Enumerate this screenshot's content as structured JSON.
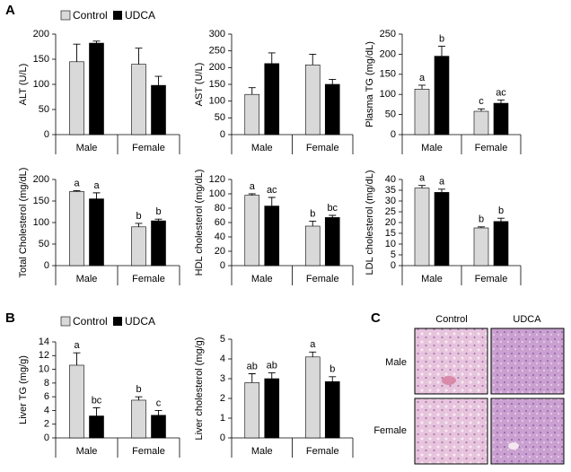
{
  "panel_labels": [
    "A",
    "B",
    "C"
  ],
  "chart_data": [
    {
      "type": "bar",
      "ylabel": "ALT (U/L)",
      "categories": [
        "Male",
        "Female"
      ],
      "series": [
        {
          "name": "Control",
          "color": "#d9d9d9",
          "values": [
            145,
            140
          ],
          "errors": [
            35,
            32
          ]
        },
        {
          "name": "UDCA",
          "color": "#000000",
          "values": [
            182,
            98
          ],
          "errors": [
            4,
            18
          ]
        }
      ],
      "ylim": [
        0,
        200
      ],
      "yticks": [
        0,
        50,
        100,
        150,
        200
      ]
    },
    {
      "type": "bar",
      "ylabel": "AST (U/L)",
      "categories": [
        "Male",
        "Female"
      ],
      "series": [
        {
          "name": "Control",
          "color": "#d9d9d9",
          "values": [
            120,
            208
          ],
          "errors": [
            20,
            32
          ]
        },
        {
          "name": "UDCA",
          "color": "#000000",
          "values": [
            212,
            150
          ],
          "errors": [
            32,
            15
          ]
        }
      ],
      "ylim": [
        0,
        300
      ],
      "yticks": [
        0,
        50,
        100,
        150,
        200,
        250,
        300
      ]
    },
    {
      "type": "bar",
      "ylabel": "Plasma TG (mg/dL)",
      "categories": [
        "Male",
        "Female"
      ],
      "series": [
        {
          "name": "Control",
          "color": "#d9d9d9",
          "values": [
            113,
            58
          ],
          "errors": [
            10,
            6
          ],
          "letters": [
            "a",
            "c"
          ]
        },
        {
          "name": "UDCA",
          "color": "#000000",
          "values": [
            195,
            78
          ],
          "errors": [
            25,
            8
          ],
          "letters": [
            "b",
            "ac"
          ]
        }
      ],
      "ylim": [
        0,
        250
      ],
      "yticks": [
        0,
        50,
        100,
        150,
        200,
        250
      ]
    },
    {
      "type": "bar",
      "ylabel": "Total Cholesterol (mg/dL)",
      "categories": [
        "Male",
        "Female"
      ],
      "series": [
        {
          "name": "Control",
          "color": "#d9d9d9",
          "values": [
            172,
            90
          ],
          "errors": [
            2,
            8
          ],
          "letters": [
            "a",
            "b"
          ]
        },
        {
          "name": "UDCA",
          "color": "#000000",
          "values": [
            155,
            104
          ],
          "errors": [
            14,
            4
          ],
          "letters": [
            "a",
            "b"
          ]
        }
      ],
      "ylim": [
        0,
        200
      ],
      "yticks": [
        0,
        50,
        100,
        150,
        200
      ]
    },
    {
      "type": "bar",
      "ylabel": "HDL cholesterol (mg/dL)",
      "categories": [
        "Male",
        "Female"
      ],
      "series": [
        {
          "name": "Control",
          "color": "#d9d9d9",
          "values": [
            98,
            55
          ],
          "errors": [
            2,
            7
          ],
          "letters": [
            "a",
            "b"
          ]
        },
        {
          "name": "UDCA",
          "color": "#000000",
          "values": [
            83,
            67
          ],
          "errors": [
            12,
            3
          ],
          "letters": [
            "ac",
            "bc"
          ]
        }
      ],
      "ylim": [
        0,
        120
      ],
      "yticks": [
        0,
        20,
        40,
        60,
        80,
        100,
        120
      ]
    },
    {
      "type": "bar",
      "ylabel": "LDL cholesterol (mg/dL)",
      "categories": [
        "Male",
        "Female"
      ],
      "series": [
        {
          "name": "Control",
          "color": "#d9d9d9",
          "values": [
            36,
            17.5
          ],
          "errors": [
            1.2,
            0.5
          ],
          "letters": [
            "a",
            "b"
          ]
        },
        {
          "name": "UDCA",
          "color": "#000000",
          "values": [
            34,
            20.5
          ],
          "errors": [
            1.5,
            1.5
          ],
          "letters": [
            "a",
            "b"
          ]
        }
      ],
      "ylim": [
        0,
        40
      ],
      "yticks": [
        0,
        5,
        10,
        15,
        20,
        25,
        30,
        35,
        40
      ]
    },
    {
      "type": "bar",
      "ylabel": "Liver TG (mg/g)",
      "categories": [
        "Male",
        "Female"
      ],
      "series": [
        {
          "name": "Control",
          "color": "#d9d9d9",
          "values": [
            10.6,
            5.5
          ],
          "errors": [
            1.8,
            0.5
          ],
          "letters": [
            "a",
            "b"
          ]
        },
        {
          "name": "UDCA",
          "color": "#000000",
          "values": [
            3.2,
            3.3
          ],
          "errors": [
            1.2,
            0.7
          ],
          "letters": [
            "bc",
            "c"
          ]
        }
      ],
      "ylim": [
        0,
        14
      ],
      "yticks": [
        0,
        2,
        4,
        6,
        8,
        10,
        12,
        14
      ]
    },
    {
      "type": "bar",
      "ylabel": "Liver cholesterol (mg/g)",
      "categories": [
        "Male",
        "Female"
      ],
      "series": [
        {
          "name": "Control",
          "color": "#d9d9d9",
          "values": [
            2.8,
            4.1
          ],
          "errors": [
            0.45,
            0.25
          ],
          "letters": [
            "ab",
            "a"
          ]
        },
        {
          "name": "UDCA",
          "color": "#000000",
          "values": [
            3.0,
            2.85
          ],
          "errors": [
            0.3,
            0.25
          ],
          "letters": [
            "ab",
            "b"
          ]
        }
      ],
      "ylim": [
        0,
        5
      ],
      "yticks": [
        0,
        1,
        2,
        3,
        4,
        5
      ]
    }
  ],
  "histology": {
    "columns": [
      "Control",
      "UDCA"
    ],
    "rows": [
      "Male",
      "Female"
    ]
  }
}
